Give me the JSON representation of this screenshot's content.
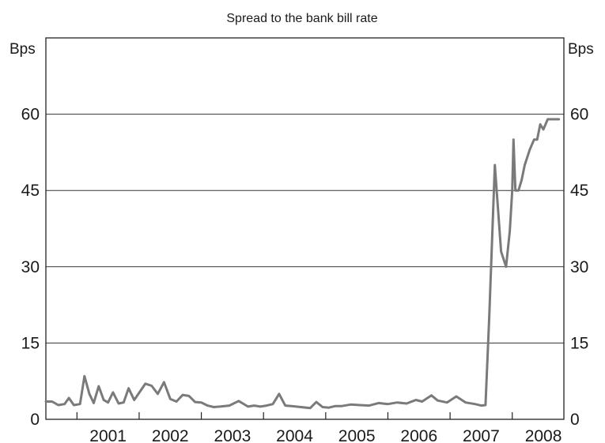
{
  "chart_data": {
    "type": "line",
    "title": "Spread to the bank bill rate",
    "unit_left": "Bps",
    "unit_right": "Bps",
    "ylim": [
      0,
      75
    ],
    "y_ticks": [
      "0",
      "15",
      "30",
      "45",
      "60"
    ],
    "x_ticks": [
      "2001",
      "2002",
      "2003",
      "2004",
      "2005",
      "2006",
      "2007",
      "2008"
    ],
    "xlim": [
      2000.5,
      2008.83
    ],
    "grid": true,
    "line_color": "#7a7a7a",
    "series": [
      {
        "x": [
          2000.5,
          2000.6,
          2000.7,
          2000.8,
          2000.87,
          2000.95,
          2001.05,
          2001.12,
          2001.2,
          2001.27,
          2001.35,
          2001.43,
          2001.5,
          2001.58,
          2001.67,
          2001.75,
          2001.83,
          2001.92,
          2002.0,
          2002.1,
          2002.2,
          2002.3,
          2002.4,
          2002.5,
          2002.6,
          2002.7,
          2002.8,
          2002.9,
          2003.0,
          2003.1,
          2003.2,
          2003.3,
          2003.45,
          2003.6,
          2003.75,
          2003.85,
          2003.95,
          2004.05,
          2004.15,
          2004.25,
          2004.35,
          2004.45,
          2004.6,
          2004.75,
          2004.85,
          2004.95,
          2005.05,
          2005.15,
          2005.25,
          2005.4,
          2005.55,
          2005.7,
          2005.85,
          2006.0,
          2006.15,
          2006.3,
          2006.45,
          2006.55,
          2006.7,
          2006.8,
          2006.95,
          2007.1,
          2007.25,
          2007.4,
          2007.5,
          2007.57,
          2007.63,
          2007.72,
          2007.82,
          2007.9,
          2007.96,
          2008.0,
          2008.02,
          2008.05,
          2008.1,
          2008.15,
          2008.2,
          2008.28,
          2008.35,
          2008.4,
          2008.45,
          2008.5,
          2008.57,
          2008.65,
          2008.75
        ],
        "y": [
          3.5,
          3.5,
          2.8,
          3.0,
          4.2,
          2.8,
          3.0,
          8.5,
          5.0,
          3.2,
          6.5,
          3.8,
          3.3,
          5.3,
          3.1,
          3.3,
          6.1,
          3.8,
          5.2,
          7.0,
          6.6,
          5.0,
          7.3,
          4.0,
          3.5,
          4.8,
          4.6,
          3.4,
          3.3,
          2.7,
          2.4,
          2.5,
          2.7,
          3.6,
          2.5,
          2.7,
          2.5,
          2.7,
          3.0,
          5.0,
          2.7,
          2.6,
          2.4,
          2.2,
          3.4,
          2.4,
          2.3,
          2.6,
          2.6,
          2.9,
          2.8,
          2.7,
          3.2,
          3.0,
          3.3,
          3.1,
          3.8,
          3.5,
          4.7,
          3.7,
          3.3,
          4.5,
          3.3,
          3.0,
          2.7,
          2.8,
          20,
          50,
          33,
          30,
          37,
          45,
          55,
          45,
          45,
          47,
          50,
          53,
          55,
          55,
          58,
          57,
          59,
          59,
          59
        ]
      }
    ]
  }
}
